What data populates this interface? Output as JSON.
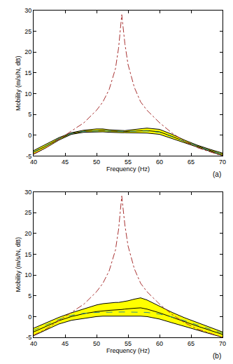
{
  "chart_data": [
    {
      "type": "line",
      "x_label": "Frequency (Hz)",
      "y_label": "Mobility (m/s/N, dB)",
      "annotation": "(a)",
      "x": [
        40,
        42,
        44,
        46,
        48,
        50,
        51,
        52,
        53,
        53.5,
        54,
        54.5,
        55,
        56,
        57,
        58,
        60,
        62,
        64,
        66,
        68,
        70
      ],
      "xlim": [
        40,
        70
      ],
      "xticks": [
        40,
        45,
        50,
        55,
        60,
        65,
        70
      ],
      "ylim": [
        -5,
        30
      ],
      "yticks": [
        -5,
        0,
        5,
        10,
        15,
        20,
        25,
        30
      ],
      "series": [
        {
          "type": "line",
          "color": "#000000",
          "line_style": "solid",
          "values": [
            -4.6,
            -3,
            -1.2,
            0.2,
            0.7,
            0.8,
            0.8,
            0.7,
            0.6,
            0.6,
            0.6,
            0.6,
            0.6,
            0.6,
            0.6,
            0.5,
            0.2,
            -0.8,
            -1.9,
            -2.9,
            -3.9,
            -4.9
          ]
        },
        {
          "type": "area",
          "color": "#ffff00",
          "line_style": "solid",
          "values": [
            -3.7,
            -2.2,
            -0.6,
            0.6,
            1.2,
            1.5,
            1.5,
            1.3,
            1.2,
            1.1,
            1.1,
            1.1,
            1.2,
            1.4,
            1.6,
            1.7,
            1.4,
            0.2,
            -1.2,
            -2.4,
            -3.4,
            -4.3
          ]
        },
        {
          "type": "line",
          "color": "#000000",
          "line_style": "solid",
          "values": [
            -4.1,
            -2.6,
            -0.9,
            0.4,
            0.95,
            1.15,
            1.15,
            1.0,
            0.9,
            0.85,
            0.85,
            0.85,
            0.9,
            1.0,
            1.1,
            1.1,
            0.8,
            -0.3,
            -1.55,
            -2.65,
            -3.65,
            -4.6
          ]
        },
        {
          "type": "line",
          "color": "#2f8a8a",
          "line_style": "dashed",
          "values": [
            -4.0,
            -2.5,
            -0.8,
            0.4,
            0.9,
            1.05,
            1.05,
            1.0,
            0.95,
            0.9,
            0.9,
            0.9,
            0.9,
            0.95,
            1.0,
            1.0,
            0.7,
            -0.4,
            -1.6,
            -2.7,
            -3.7,
            -4.6
          ]
        },
        {
          "type": "line",
          "color": "#a83232",
          "line_style": "dashdot",
          "values": [
            -4.5,
            -3,
            -1,
            1,
            3,
            6,
            8,
            11,
            16,
            21,
            29,
            22,
            17,
            11.5,
            8,
            6,
            3,
            0.5,
            -1.5,
            -3,
            -4,
            -5
          ]
        }
      ]
    },
    {
      "type": "line",
      "x_label": "Frequency (Hz)",
      "y_label": "Mobility (m/s/N, dB)",
      "annotation": "(b)",
      "x": [
        40,
        42,
        44,
        46,
        48,
        50,
        51,
        52,
        53,
        53.5,
        54,
        54.5,
        55,
        56,
        57,
        58,
        60,
        62,
        64,
        66,
        68,
        70
      ],
      "xlim": [
        40,
        70
      ],
      "xticks": [
        40,
        45,
        50,
        55,
        60,
        65,
        70
      ],
      "ylim": [
        -5,
        30
      ],
      "yticks": [
        -5,
        0,
        5,
        10,
        15,
        20,
        25,
        30
      ],
      "series": [
        {
          "type": "line",
          "color": "#000000",
          "line_style": "solid",
          "values": [
            -4.6,
            -3.2,
            -1.8,
            -0.9,
            -0.4,
            0,
            0.1,
            0.1,
            0.2,
            0.2,
            0.2,
            0.2,
            0.2,
            0.2,
            0.1,
            0,
            -0.6,
            -1.5,
            -2.4,
            -3.2,
            -4.1,
            -5.0
          ]
        },
        {
          "type": "area",
          "color": "#ffff00",
          "line_style": "solid",
          "values": [
            -2.8,
            -1.5,
            -0.2,
            0.9,
            1.8,
            2.8,
            3.1,
            3.3,
            3.4,
            3.4,
            3.5,
            3.6,
            3.8,
            4.2,
            4.5,
            4.0,
            2.5,
            1.0,
            -0.3,
            -1.4,
            -2.6,
            -3.7
          ]
        },
        {
          "type": "line",
          "color": "#000000",
          "line_style": "solid",
          "values": [
            -3.7,
            -2.3,
            -1.0,
            0,
            0.7,
            1.2,
            1.4,
            1.5,
            1.6,
            1.6,
            1.7,
            1.8,
            1.9,
            2.0,
            2.1,
            1.8,
            0.9,
            -0.2,
            -1.3,
            -2.3,
            -3.3,
            -4.3
          ]
        },
        {
          "type": "line",
          "color": "#2f8a8a",
          "line_style": "dashed",
          "values": [
            -3.3,
            -2.0,
            -0.7,
            0.3,
            0.8,
            1.0,
            1.05,
            1.1,
            1.1,
            1.1,
            1.1,
            1.1,
            1.1,
            1.05,
            1.0,
            1.0,
            0.6,
            -0.1,
            -1.0,
            -2.0,
            -3.0,
            -4.0
          ]
        },
        {
          "type": "line",
          "color": "#a83232",
          "line_style": "dashdot",
          "values": [
            -4.5,
            -3,
            -1,
            1,
            3,
            6,
            8,
            11,
            16,
            21,
            29,
            22,
            17,
            11.5,
            8,
            6,
            3,
            0.5,
            -1.5,
            -3,
            -4,
            -5
          ]
        }
      ]
    }
  ]
}
